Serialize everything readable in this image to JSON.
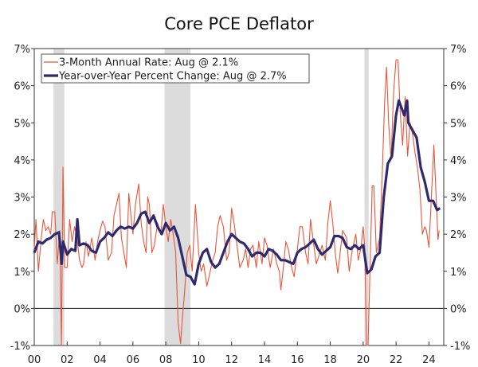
{
  "chart_data": {
    "type": "line",
    "title": "Core PCE Deflator",
    "xlim": [
      2000,
      2024.9
    ],
    "ylim": [
      -1,
      7
    ],
    "x_tick_labels": [
      "00",
      "02",
      "04",
      "06",
      "08",
      "10",
      "12",
      "14",
      "16",
      "18",
      "20",
      "22",
      "24"
    ],
    "x_tick_years": [
      2000,
      2002,
      2004,
      2006,
      2008,
      2010,
      2012,
      2014,
      2016,
      2018,
      2020,
      2022,
      2024
    ],
    "y_ticks": [
      -1,
      0,
      1,
      2,
      3,
      4,
      5,
      6,
      7
    ],
    "y_tick_labels": [
      "-1%",
      "0%",
      "1%",
      "2%",
      "3%",
      "4%",
      "5%",
      "6%",
      "7%"
    ],
    "grid": false,
    "legend_placement": "top-left",
    "recessions": [
      [
        2001.17,
        2001.83
      ],
      [
        2007.92,
        2009.5
      ],
      [
        2020.08,
        2020.33
      ]
    ],
    "recession_color": "#dcdcdc",
    "series": [
      {
        "name": "3-Month Annual Rate: Aug @ 2.1%",
        "color": "#e8553a",
        "x": [
          2000.0,
          2000.1,
          2000.25,
          2000.4,
          2000.55,
          2000.7,
          2000.85,
          2001.0,
          2001.1,
          2001.25,
          2001.4,
          2001.55,
          2001.65,
          2001.75,
          2001.85,
          2002.0,
          2002.15,
          2002.3,
          2002.45,
          2002.6,
          2002.75,
          2002.9,
          2003.0,
          2003.15,
          2003.3,
          2003.5,
          2003.7,
          2003.85,
          2004.0,
          2004.15,
          2004.3,
          2004.5,
          2004.7,
          2004.85,
          2005.0,
          2005.15,
          2005.3,
          2005.45,
          2005.6,
          2005.75,
          2005.9,
          2006.0,
          2006.15,
          2006.35,
          2006.5,
          2006.65,
          2006.8,
          2006.9,
          2007.0,
          2007.15,
          2007.3,
          2007.5,
          2007.7,
          2007.85,
          2008.0,
          2008.15,
          2008.3,
          2008.45,
          2008.6,
          2008.75,
          2008.9,
          2009.0,
          2009.15,
          2009.3,
          2009.45,
          2009.6,
          2009.8,
          2010.0,
          2010.15,
          2010.3,
          2010.5,
          2010.7,
          2010.85,
          2011.0,
          2011.15,
          2011.3,
          2011.5,
          2011.7,
          2011.85,
          2012.0,
          2012.15,
          2012.3,
          2012.5,
          2012.7,
          2012.85,
          2013.0,
          2013.15,
          2013.3,
          2013.5,
          2013.65,
          2013.85,
          2014.0,
          2014.15,
          2014.35,
          2014.55,
          2014.75,
          2014.9,
          2015.0,
          2015.15,
          2015.3,
          2015.45,
          2015.65,
          2015.8,
          2016.0,
          2016.15,
          2016.3,
          2016.5,
          2016.65,
          2016.8,
          2017.0,
          2017.15,
          2017.3,
          2017.5,
          2017.7,
          2017.85,
          2018.0,
          2018.15,
          2018.3,
          2018.45,
          2018.6,
          2018.75,
          2019.0,
          2019.15,
          2019.35,
          2019.55,
          2019.7,
          2019.85,
          2020.0,
          2020.1,
          2020.2,
          2020.3,
          2020.45,
          2020.55,
          2020.65,
          2020.8,
          2021.0,
          2021.15,
          2021.3,
          2021.42,
          2021.55,
          2021.7,
          2021.85,
          2022.0,
          2022.12,
          2022.25,
          2022.4,
          2022.55,
          2022.7,
          2022.85,
          2023.0,
          2023.15,
          2023.3,
          2023.45,
          2023.6,
          2023.75,
          2023.85,
          2024.0,
          2024.15,
          2024.3,
          2024.45,
          2024.55,
          2024.62
        ],
        "y": [
          1.6,
          2.4,
          1.0,
          1.8,
          2.4,
          2.1,
          2.2,
          2.0,
          2.6,
          2.6,
          1.2,
          2.1,
          -1.0,
          3.8,
          1.1,
          1.1,
          2.4,
          1.8,
          2.2,
          1.9,
          1.3,
          1.1,
          1.2,
          1.8,
          1.4,
          1.9,
          1.3,
          1.8,
          2.1,
          2.35,
          2.2,
          1.3,
          1.5,
          2.5,
          2.8,
          3.1,
          1.9,
          1.5,
          1.1,
          3.1,
          2.4,
          2.0,
          2.8,
          3.35,
          2.3,
          1.8,
          1.5,
          3.0,
          2.8,
          1.5,
          1.7,
          2.3,
          2.0,
          2.8,
          2.2,
          1.8,
          2.4,
          2.0,
          1.5,
          -0.4,
          -0.95,
          -0.3,
          0.5,
          1.5,
          1.7,
          1.0,
          2.8,
          1.5,
          1.0,
          1.2,
          0.6,
          1.0,
          1.3,
          1.5,
          2.2,
          2.5,
          2.2,
          1.3,
          1.5,
          2.7,
          2.3,
          1.8,
          1.1,
          1.3,
          1.6,
          1.1,
          1.6,
          1.7,
          1.1,
          1.8,
          1.2,
          1.9,
          1.7,
          1.1,
          1.6,
          1.2,
          1.0,
          0.5,
          1.1,
          1.8,
          1.6,
          1.1,
          0.85,
          1.6,
          2.2,
          2.2,
          1.5,
          1.2,
          2.4,
          1.7,
          1.2,
          1.4,
          1.7,
          1.3,
          2.3,
          2.9,
          2.3,
          1.5,
          0.95,
          1.5,
          2.1,
          1.9,
          1.0,
          1.6,
          2.0,
          1.3,
          1.6,
          2.2,
          1.6,
          -1.0,
          -1.0,
          1.6,
          3.3,
          3.3,
          1.5,
          1.9,
          3.5,
          5.5,
          6.5,
          5.0,
          4.0,
          5.8,
          6.7,
          6.7,
          5.3,
          4.4,
          5.7,
          4.1,
          5.0,
          4.7,
          4.2,
          3.8,
          3.2,
          2.0,
          2.2,
          2.1,
          1.65,
          3.0,
          4.4,
          2.9,
          1.85,
          2.1
        ]
      },
      {
        "name": "Year-over-Year Percent Change: Aug @ 2.7%",
        "color": "#2e2a6e",
        "x": [
          2000.0,
          2000.25,
          2000.5,
          2000.75,
          2001.0,
          2001.25,
          2001.5,
          2001.67,
          2001.75,
          2002.0,
          2002.25,
          2002.5,
          2002.62,
          2002.75,
          2003.0,
          2003.25,
          2003.5,
          2003.75,
          2004.0,
          2004.25,
          2004.5,
          2004.75,
          2005.0,
          2005.25,
          2005.5,
          2005.75,
          2006.0,
          2006.25,
          2006.5,
          2006.75,
          2007.0,
          2007.25,
          2007.5,
          2007.75,
          2008.0,
          2008.25,
          2008.5,
          2008.75,
          2009.0,
          2009.25,
          2009.5,
          2009.75,
          2010.0,
          2010.25,
          2010.5,
          2010.75,
          2011.0,
          2011.25,
          2011.5,
          2011.75,
          2012.0,
          2012.25,
          2012.5,
          2012.75,
          2013.0,
          2013.25,
          2013.5,
          2013.75,
          2014.0,
          2014.25,
          2014.5,
          2014.75,
          2015.0,
          2015.25,
          2015.5,
          2015.75,
          2016.0,
          2016.25,
          2016.5,
          2016.75,
          2017.0,
          2017.25,
          2017.5,
          2017.75,
          2018.0,
          2018.25,
          2018.5,
          2018.75,
          2019.0,
          2019.25,
          2019.5,
          2019.75,
          2020.0,
          2020.25,
          2020.5,
          2020.75,
          2021.0,
          2021.25,
          2021.5,
          2021.75,
          2022.0,
          2022.17,
          2022.5,
          2022.67,
          2022.75,
          2023.0,
          2023.25,
          2023.5,
          2023.75,
          2024.0,
          2024.25,
          2024.5,
          2024.67
        ],
        "y": [
          1.5,
          1.8,
          1.75,
          1.85,
          1.9,
          2.0,
          2.05,
          1.2,
          1.8,
          1.45,
          1.6,
          1.55,
          2.4,
          1.7,
          1.75,
          1.7,
          1.55,
          1.5,
          1.8,
          1.9,
          2.05,
          1.95,
          2.1,
          2.2,
          2.15,
          2.2,
          2.15,
          2.3,
          2.55,
          2.6,
          2.3,
          2.5,
          2.2,
          2.0,
          2.3,
          2.1,
          2.2,
          1.9,
          1.4,
          0.9,
          0.85,
          0.65,
          1.2,
          1.5,
          1.6,
          1.25,
          1.1,
          1.2,
          1.5,
          1.8,
          2.0,
          1.9,
          1.8,
          1.75,
          1.6,
          1.4,
          1.5,
          1.5,
          1.4,
          1.6,
          1.55,
          1.45,
          1.3,
          1.3,
          1.25,
          1.2,
          1.5,
          1.6,
          1.65,
          1.75,
          1.85,
          1.6,
          1.45,
          1.55,
          1.65,
          1.95,
          1.95,
          1.9,
          1.65,
          1.6,
          1.7,
          1.6,
          1.7,
          0.95,
          1.05,
          1.4,
          1.5,
          3.0,
          3.9,
          4.1,
          5.2,
          5.6,
          5.2,
          5.6,
          5.0,
          4.8,
          4.6,
          3.8,
          3.4,
          2.9,
          2.9,
          2.65,
          2.7
        ]
      }
    ]
  }
}
